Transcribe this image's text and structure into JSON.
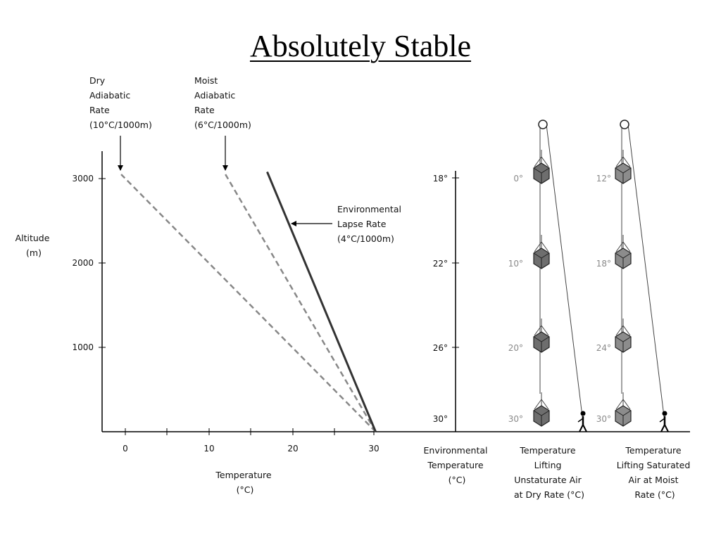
{
  "title": "Absolutely Stable",
  "annotations": {
    "dry": [
      "Dry",
      "Adiabatic",
      "Rate",
      "(10°C/1000m)"
    ],
    "moist": [
      "Moist",
      "Adiabatic",
      "Rate",
      "(6°C/1000m)"
    ],
    "env": [
      "Environmental",
      "Lapse Rate",
      "(4°C/1000m)"
    ]
  },
  "axes": {
    "y_label": [
      "Altitude",
      "(m)"
    ],
    "x_label": [
      "Temperature",
      "(°C)"
    ],
    "y_ticks": [
      "3000",
      "2000",
      "1000"
    ],
    "x_ticks": [
      "0",
      "10",
      "20",
      "30"
    ]
  },
  "lines": {
    "dry_adiabatic": {
      "t_start": 30,
      "t_end": -0.5,
      "alt_top": 3050,
      "color": "#888888",
      "style": "dashed"
    },
    "moist_adiabatic": {
      "t_start": 30,
      "t_end": 12,
      "alt_top": 3050,
      "color": "#888888",
      "style": "dashed"
    },
    "environmental": {
      "t_start": 30,
      "t_end": 17,
      "alt_top": 3080,
      "color": "#333333",
      "style": "solid"
    }
  },
  "env_temperature": {
    "ticks": [
      "18°",
      "22°",
      "26°",
      "30°"
    ],
    "caption": [
      "Environmental",
      "Temperature",
      "(°C)"
    ]
  },
  "dry_lift": {
    "temps": [
      "0°",
      "10°",
      "20°",
      "30°"
    ],
    "caption": [
      "Temperature",
      "Lifting",
      "Unstaturate Air",
      "at Dry Rate (°C)"
    ]
  },
  "moist_lift": {
    "temps": [
      "12°",
      "18°",
      "24°",
      "30°"
    ],
    "caption": [
      "Temperature",
      "Lifting Saturated",
      "Air at Moist",
      "Rate (°C)"
    ]
  },
  "colors": {
    "axis": "#000000",
    "box_dark": "#6e6e6e",
    "box_light": "#8c8c8c",
    "gray_text": "#8a8a8a"
  }
}
